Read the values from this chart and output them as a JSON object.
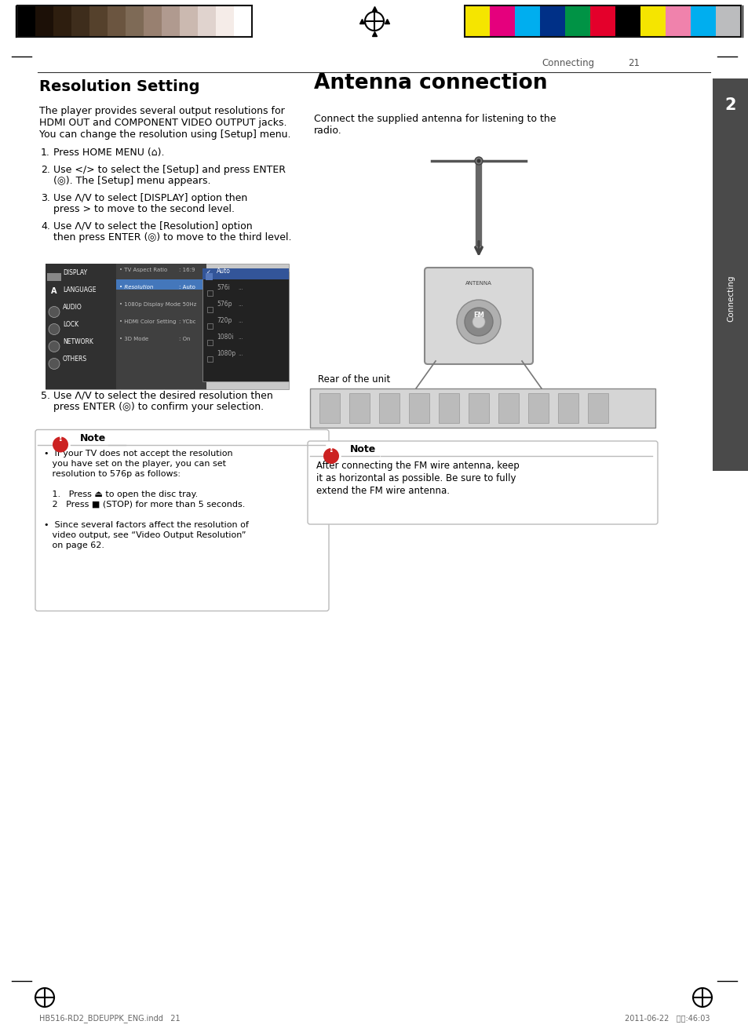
{
  "page_num": "21",
  "section_header": "Connecting",
  "left_title": "Resolution Setting",
  "right_title": "Antenna connection",
  "left_body_lines": [
    "The player provides several output resolutions for",
    "HDMI OUT and COMPONENT VIDEO OUTPUT jacks.",
    "You can change the resolution using [Setup] menu."
  ],
  "right_body_lines": [
    "Connect the supplied antenna for listening to the",
    "radio."
  ],
  "steps": [
    [
      "1.",
      "Press HOME MENU (⌂)."
    ],
    [
      "2.",
      "Use </> to select the [Setup] and press ENTER\n(◎). The [Setup] menu appears."
    ],
    [
      "3.",
      "Use Λ/V to select [DISPLAY] option then\npress > to move to the second level."
    ],
    [
      "4.",
      "Use Λ/V to select the [Resolution] option\nthen press ENTER (◎) to move to the third level."
    ],
    [
      "5.",
      "Use Λ/V to select the desired resolution then\npress ENTER (◎) to confirm your selection."
    ]
  ],
  "note_left_title": "Note",
  "note_left_lines": [
    "•  If your TV does not accept the resolution",
    "   you have set on the player, you can set",
    "   resolution to 576p as follows:",
    "",
    "   1.   Press ⏏ to open the disc tray.",
    "   2   Press ■ (STOP) for more than 5 seconds.",
    "",
    "•  Since several factors affect the resolution of",
    "   video output, see “Video Output Resolution”",
    "   on page 62."
  ],
  "note_right_title": "Note",
  "note_right_lines": [
    "After connecting the FM wire antenna, keep",
    "it as horizontal as possible. Be sure to fully",
    "extend the FM wire antenna."
  ],
  "sidebar_label": "Connecting",
  "sidebar_num": "2",
  "bg_color": "#ffffff",
  "color_swatches_left": [
    "#000000",
    "#1c1007",
    "#2e1e0f",
    "#3e2d1c",
    "#55412c",
    "#6b5540",
    "#7e6a56",
    "#988070",
    "#b09a8f",
    "#cbb9b0",
    "#e0d3ce",
    "#f5ece8",
    "#ffffff"
  ],
  "color_swatches_right": [
    "#f5e500",
    "#e5007d",
    "#00aeef",
    "#003087",
    "#009345",
    "#e4002b",
    "#000000",
    "#f5e500",
    "#f082ac",
    "#00aeef",
    "#bbbcbe"
  ],
  "footer_left": "HB516-RD2_BDEUPPK_ENG.indd   21",
  "footer_right": "2011-06-22   ０３:46:03",
  "menu_left_items": [
    "DISPLAY",
    "LANGUAGE",
    "AUDIO",
    "LOCK",
    "NETWORK",
    "OTHERS"
  ],
  "menu_center_items": [
    [
      "TV Aspect Ratio",
      ": 16:9"
    ],
    [
      "Resolution",
      ": Auto"
    ],
    [
      "1080p Display Mode",
      ": 50Hz"
    ],
    [
      "HDMI Color Setting",
      ": YCbc"
    ],
    [
      "3D Mode",
      ": On"
    ]
  ],
  "menu_right_items": [
    "Auto",
    "576i",
    "576p",
    "720p",
    "1080i",
    "1080p"
  ]
}
